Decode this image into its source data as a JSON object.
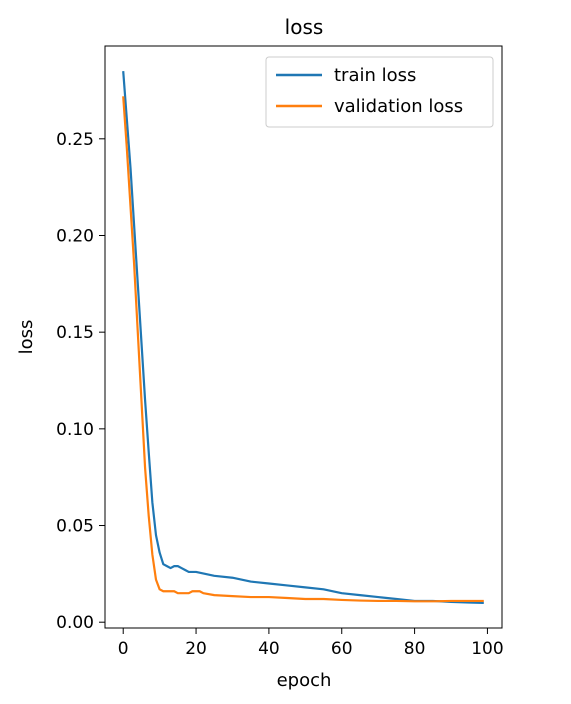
{
  "chart_data": {
    "type": "line",
    "title": "loss",
    "xlabel": "epoch",
    "ylabel": "loss",
    "xlim": [
      -5,
      104
    ],
    "ylim": [
      -0.003,
      0.298
    ],
    "xticks": [
      0,
      20,
      40,
      60,
      80,
      100
    ],
    "xtick_labels": [
      "0",
      "20",
      "40",
      "60",
      "80",
      "100"
    ],
    "yticks": [
      0.0,
      0.05,
      0.1,
      0.15,
      0.2,
      0.25
    ],
    "ytick_labels": [
      "0.00",
      "0.05",
      "0.10",
      "0.15",
      "0.20",
      "0.25"
    ],
    "grid": false,
    "legend": "upper right",
    "series": [
      {
        "name": "train loss",
        "color": "#1f77b4",
        "x": [
          0,
          1,
          2,
          3,
          4,
          5,
          6,
          7,
          8,
          9,
          10,
          11,
          12,
          13,
          14,
          15,
          16,
          17,
          18,
          19,
          20,
          25,
          30,
          35,
          40,
          45,
          50,
          55,
          60,
          65,
          70,
          75,
          80,
          85,
          90,
          95,
          99
        ],
        "y": [
          0.285,
          0.26,
          0.235,
          0.205,
          0.175,
          0.145,
          0.115,
          0.088,
          0.062,
          0.045,
          0.036,
          0.03,
          0.029,
          0.028,
          0.029,
          0.029,
          0.028,
          0.027,
          0.026,
          0.026,
          0.026,
          0.024,
          0.023,
          0.021,
          0.02,
          0.019,
          0.018,
          0.017,
          0.015,
          0.014,
          0.013,
          0.012,
          0.011,
          0.011,
          0.0105,
          0.0102,
          0.01
        ]
      },
      {
        "name": "validation loss",
        "color": "#ff7f0e",
        "x": [
          0,
          1,
          2,
          3,
          4,
          5,
          6,
          7,
          8,
          9,
          10,
          11,
          12,
          13,
          14,
          15,
          16,
          17,
          18,
          19,
          20,
          21,
          22,
          25,
          30,
          35,
          40,
          45,
          50,
          55,
          60,
          65,
          70,
          75,
          80,
          85,
          90,
          95,
          99
        ],
        "y": [
          0.272,
          0.245,
          0.215,
          0.185,
          0.15,
          0.115,
          0.08,
          0.055,
          0.035,
          0.022,
          0.017,
          0.016,
          0.016,
          0.016,
          0.016,
          0.015,
          0.015,
          0.015,
          0.015,
          0.016,
          0.016,
          0.016,
          0.015,
          0.014,
          0.0135,
          0.013,
          0.013,
          0.0125,
          0.012,
          0.012,
          0.0115,
          0.0112,
          0.011,
          0.011,
          0.0108,
          0.0108,
          0.011,
          0.011,
          0.011
        ]
      }
    ]
  }
}
